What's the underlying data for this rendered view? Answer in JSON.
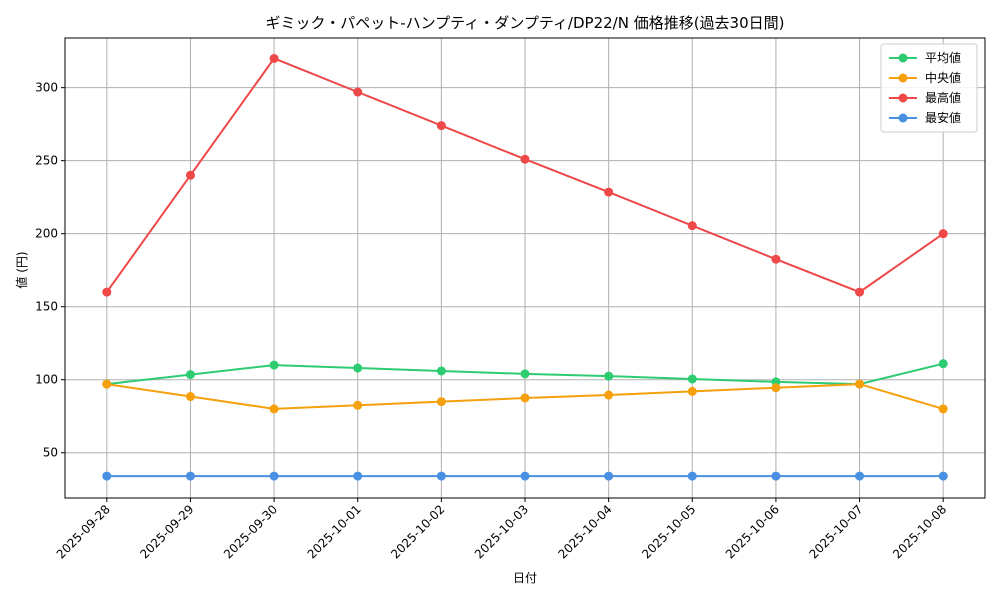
{
  "chart_data": {
    "type": "line",
    "title": "ギミック・パペット-ハンプティ・ダンプティ/DP22/N 価格推移(過去30日間)",
    "xlabel": "日付",
    "ylabel": "値 (円)",
    "categories": [
      "2025-09-28",
      "2025-09-29",
      "2025-09-30",
      "2025-10-01",
      "2025-10-02",
      "2025-10-03",
      "2025-10-04",
      "2025-10-05",
      "2025-10-06",
      "2025-10-07",
      "2025-10-08"
    ],
    "ylim": [
      19,
      334
    ],
    "yticks": [
      50,
      100,
      150,
      200,
      250,
      300
    ],
    "grid": true,
    "legend_position": "top-right",
    "series": [
      {
        "name": "平均値",
        "color": "#2ecc71",
        "values": [
          97,
          103.5,
          110,
          108,
          106,
          104,
          102.5,
          100.5,
          98.5,
          97,
          111
        ]
      },
      {
        "name": "中央値",
        "color": "#f5a00c",
        "values": [
          97,
          88.5,
          80,
          82.5,
          85,
          87.5,
          89.5,
          92,
          94.5,
          97,
          80
        ]
      },
      {
        "name": "最高値",
        "color": "#ef4848",
        "values": [
          160,
          240,
          320,
          297,
          274,
          251,
          228.5,
          205.5,
          182.5,
          160,
          200
        ]
      },
      {
        "name": "最安値",
        "color": "#4a90e2",
        "values": [
          34,
          34,
          34,
          34,
          34,
          34,
          34,
          34,
          34,
          34,
          34
        ]
      }
    ]
  }
}
